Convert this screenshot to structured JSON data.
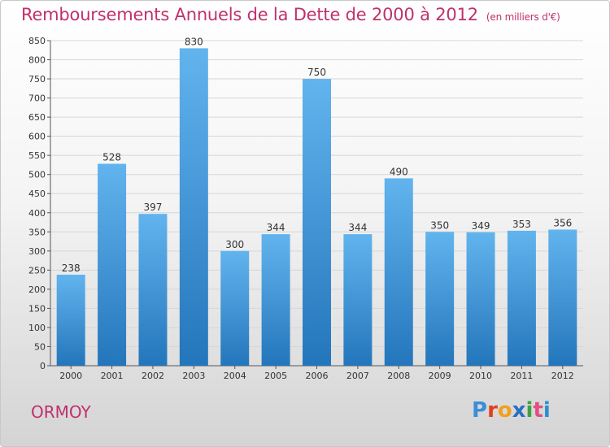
{
  "title": "Remboursements Annuels de la Dette de 2000 à 2012",
  "subtitle": "(en milliers d'€)",
  "location": "ORMOY",
  "logo": {
    "text": "Proxiti",
    "letter_colors": [
      "#3a8fd6",
      "#e04020",
      "#f0a020",
      "#2a70c0",
      "#40a040",
      "#e05080",
      "#2a90d0"
    ]
  },
  "colors": {
    "title": "#c0306d",
    "bar_top": "#62b4ee",
    "bar_bottom": "#2476bc"
  },
  "chart_data": {
    "type": "bar",
    "title": "Remboursements Annuels de la Dette de 2000 à 2012",
    "subtitle": "(en milliers d'€)",
    "categories": [
      "2000",
      "2001",
      "2002",
      "2003",
      "2004",
      "2005",
      "2006",
      "2007",
      "2008",
      "2009",
      "2010",
      "2011",
      "2012"
    ],
    "values": [
      238,
      528,
      397,
      830,
      300,
      344,
      750,
      344,
      490,
      350,
      349,
      353,
      356
    ],
    "ylim": [
      0,
      850
    ],
    "yticks": [
      0,
      50,
      100,
      150,
      200,
      250,
      300,
      350,
      400,
      450,
      500,
      550,
      600,
      650,
      700,
      750,
      800,
      850
    ],
    "grid": true
  }
}
